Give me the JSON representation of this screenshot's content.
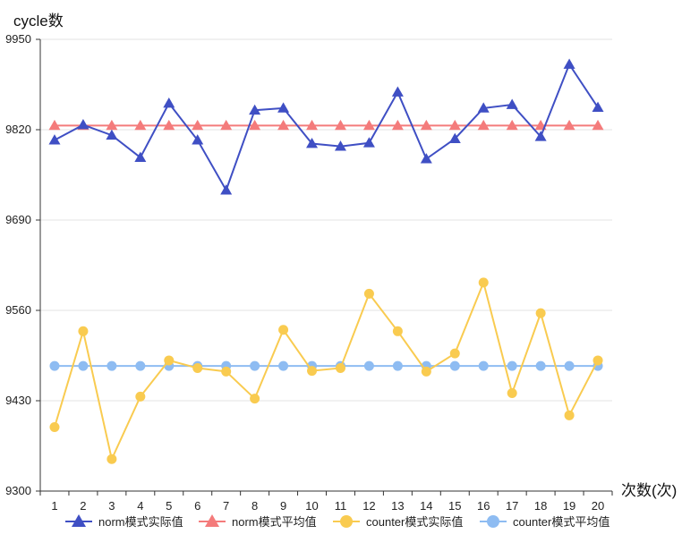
{
  "chart_data": {
    "type": "line",
    "ylabel": "cycle数",
    "xlabel": "次数(次)",
    "ylim": [
      9300,
      9950
    ],
    "yticks": [
      9300,
      9430,
      9560,
      9690,
      9820,
      9950
    ],
    "categories": [
      "1",
      "2",
      "3",
      "4",
      "5",
      "6",
      "7",
      "8",
      "9",
      "10",
      "11",
      "12",
      "13",
      "14",
      "15",
      "16",
      "17",
      "18",
      "19",
      "20"
    ],
    "grid": "horizontal",
    "legend_position": "bottom",
    "series": [
      {
        "name": "norm模式实际值",
        "marker": "triangle",
        "color": "#3f4fc4",
        "values": [
          9805,
          9827,
          9812,
          9780,
          9858,
          9805,
          9733,
          9848,
          9851,
          9800,
          9796,
          9801,
          9874,
          9778,
          9807,
          9851,
          9856,
          9810,
          9914,
          9852
        ]
      },
      {
        "name": "norm模式平均值",
        "marker": "triangle",
        "color": "#f47b7b",
        "values": [
          9826,
          9826,
          9826,
          9826,
          9826,
          9826,
          9826,
          9826,
          9826,
          9826,
          9826,
          9826,
          9826,
          9826,
          9826,
          9826,
          9826,
          9826,
          9826,
          9826
        ]
      },
      {
        "name": "counter模式实际值",
        "marker": "circle",
        "color": "#f9cb50",
        "values": [
          9392,
          9530,
          9346,
          9436,
          9488,
          9477,
          9472,
          9433,
          9532,
          9473,
          9477,
          9584,
          9530,
          9472,
          9498,
          9600,
          9441,
          9556,
          9409,
          9488
        ]
      },
      {
        "name": "counter模式平均值",
        "marker": "circle",
        "color": "#8ebcf2",
        "values": [
          9480,
          9480,
          9480,
          9480,
          9480,
          9480,
          9480,
          9480,
          9480,
          9480,
          9480,
          9480,
          9480,
          9480,
          9480,
          9480,
          9480,
          9480,
          9480,
          9480
        ]
      }
    ]
  }
}
